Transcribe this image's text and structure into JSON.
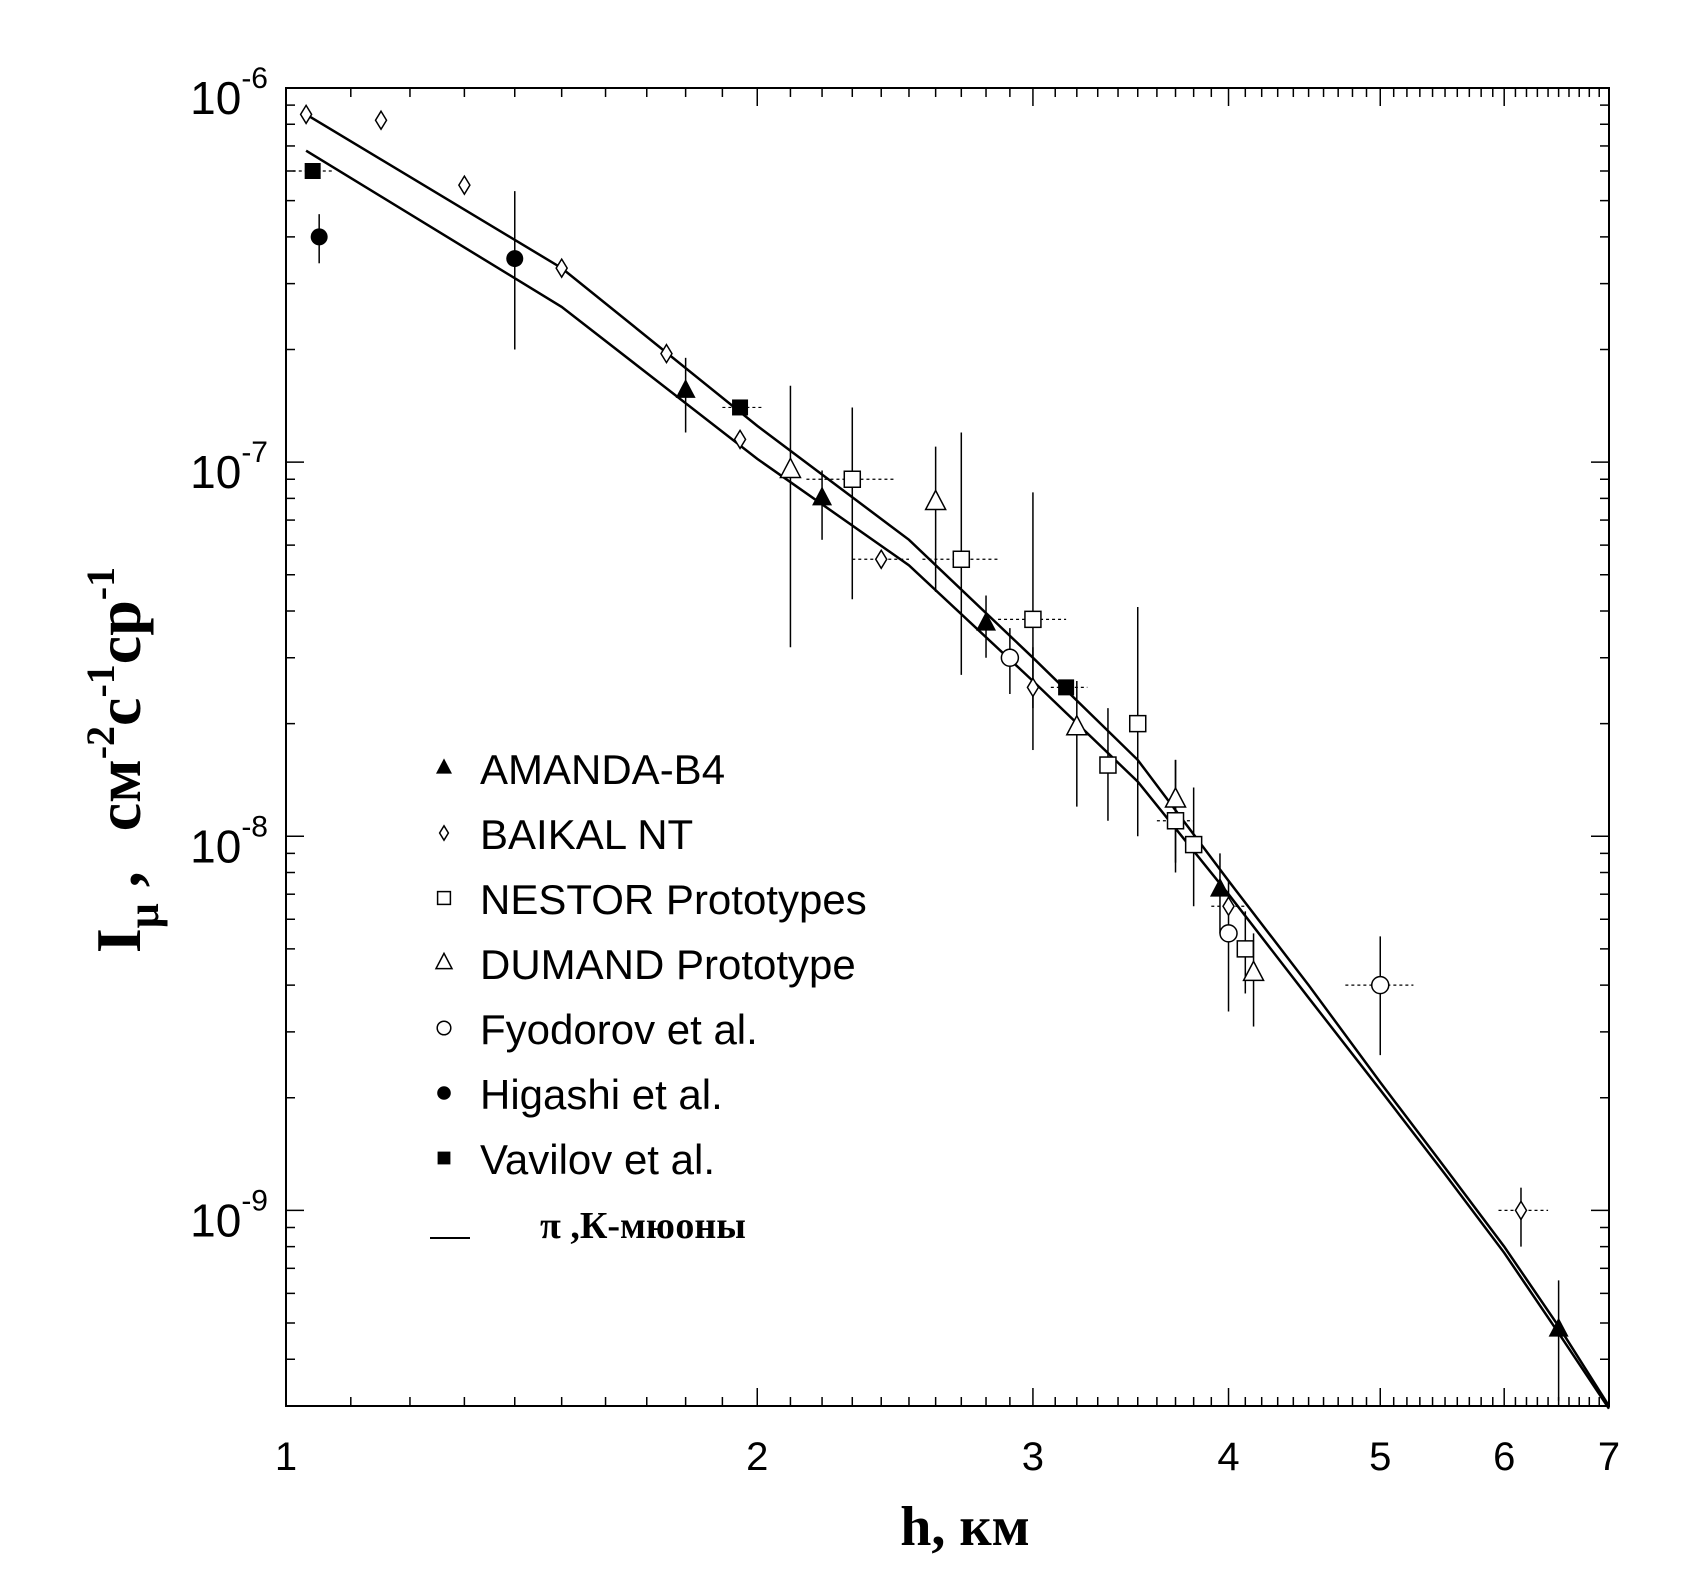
{
  "chart_data": {
    "type": "scatter",
    "xlabel": "h, км",
    "ylabel": "I_μ , см^-2 с^-1 ср^-1",
    "ylabel_parts": {
      "main": "I",
      "sub": "μ",
      "comma": " ,",
      "units": [
        "см",
        "-2",
        "с",
        "-1",
        "ср",
        "-1"
      ]
    },
    "x_scale": "log",
    "y_scale": "log",
    "xlim": [
      1,
      7
    ],
    "ylim": [
      3e-10,
      1e-06
    ],
    "x_ticks": [
      1,
      2,
      3,
      4,
      5,
      6,
      7
    ],
    "x_tick_labels": [
      "1",
      "2",
      "3",
      "4",
      "5",
      "6",
      "7"
    ],
    "y_ticks": [
      1e-09,
      1e-08,
      1e-07,
      1e-06
    ],
    "y_tick_labels": [
      {
        "base": "10",
        "exp": "-9"
      },
      {
        "base": "10",
        "exp": "-8"
      },
      {
        "base": "10",
        "exp": "-7"
      },
      {
        "base": "10",
        "exp": "-6"
      }
    ],
    "grid": false,
    "legend_position": "center-left",
    "series": [
      {
        "name": "AMANDA-B4",
        "marker": "filled-triangle",
        "points": [
          {
            "x": 1.8,
            "y": 1.55e-07,
            "ylo": 1.2e-07,
            "yhi": 1.9e-07
          },
          {
            "x": 2.2,
            "y": 8e-08,
            "ylo": 6.2e-08,
            "yhi": 9.5e-08
          },
          {
            "x": 2.8,
            "y": 3.7e-08,
            "ylo": 3e-08,
            "yhi": 4.4e-08
          },
          {
            "x": 3.95,
            "y": 7.2e-09,
            "ylo": 5.5e-09,
            "yhi": 9e-09
          },
          {
            "x": 6.5,
            "y": 4.8e-10,
            "ylo": 3.1e-10,
            "yhi": 6.5e-10
          }
        ]
      },
      {
        "name": "BAIKAL NT",
        "marker": "open-diamond",
        "points": [
          {
            "x": 1.03,
            "y": 8.5e-07
          },
          {
            "x": 1.15,
            "y": 8.2e-07
          },
          {
            "x": 1.3,
            "y": 5.5e-07
          },
          {
            "x": 1.5,
            "y": 3.3e-07
          },
          {
            "x": 1.75,
            "y": 1.95e-07
          },
          {
            "x": 1.95,
            "y": 1.15e-07
          },
          {
            "x": 2.4,
            "y": 5.5e-08,
            "xlo": 2.3,
            "xhi": 2.5
          },
          {
            "x": 3.0,
            "y": 2.5e-08,
            "ylo": 1.7e-08,
            "yhi": 3.2e-08
          },
          {
            "x": 4.0,
            "y": 6.5e-09,
            "xlo": 3.9,
            "xhi": 4.1
          },
          {
            "x": 6.15,
            "y": 1e-09,
            "xlo": 5.95,
            "xhi": 6.4,
            "ylo": 8e-10,
            "yhi": 1.15e-09
          }
        ]
      },
      {
        "name": "NESTOR Prototypes",
        "marker": "open-square",
        "points": [
          {
            "x": 2.3,
            "y": 9e-08,
            "xlo": 2.15,
            "xhi": 2.45,
            "ylo": 4.3e-08,
            "yhi": 1.4e-07
          },
          {
            "x": 2.7,
            "y": 5.5e-08,
            "xlo": 2.55,
            "xhi": 2.85,
            "ylo": 2.7e-08,
            "yhi": 1.2e-07
          },
          {
            "x": 3.0,
            "y": 3.8e-08,
            "xlo": 2.85,
            "xhi": 3.15,
            "ylo": 2.2e-08,
            "yhi": 8.3e-08
          },
          {
            "x": 3.35,
            "y": 1.55e-08,
            "ylo": 1.1e-08,
            "yhi": 2.2e-08
          },
          {
            "x": 3.5,
            "y": 2e-08,
            "ylo": 1e-08,
            "yhi": 4.1e-08
          },
          {
            "x": 3.7,
            "y": 1.1e-08,
            "xlo": 3.6,
            "xhi": 3.8,
            "ylo": 8e-09,
            "yhi": 1.6e-08
          },
          {
            "x": 3.8,
            "y": 9.5e-09,
            "ylo": 6.5e-09,
            "yhi": 1.35e-08
          },
          {
            "x": 4.1,
            "y": 5e-09,
            "ylo": 3.8e-09,
            "yhi": 6.3e-09
          }
        ]
      },
      {
        "name": "DUMAND Prototype",
        "marker": "open-triangle",
        "points": [
          {
            "x": 2.1,
            "y": 9.5e-08,
            "ylo": 3.2e-08,
            "yhi": 1.6e-07
          },
          {
            "x": 2.6,
            "y": 7.8e-08,
            "ylo": 4.5e-08,
            "yhi": 1.1e-07
          },
          {
            "x": 3.2,
            "y": 1.95e-08,
            "ylo": 1.2e-08,
            "yhi": 2.6e-08
          },
          {
            "x": 3.7,
            "y": 1.25e-08,
            "ylo": 8.5e-09,
            "yhi": 1.6e-08
          },
          {
            "x": 4.15,
            "y": 4.3e-09,
            "ylo": 3.1e-09,
            "yhi": 5.5e-09
          }
        ]
      },
      {
        "name": "Fyodorov et al.",
        "marker": "open-circle",
        "points": [
          {
            "x": 2.9,
            "y": 3e-08,
            "ylo": 2.4e-08,
            "yhi": 3.6e-08
          },
          {
            "x": 4.0,
            "y": 5.5e-09,
            "ylo": 3.4e-09,
            "yhi": 7.6e-09
          },
          {
            "x": 5.0,
            "y": 4e-09,
            "xlo": 4.75,
            "xhi": 5.25,
            "ylo": 2.6e-09,
            "yhi": 5.4e-09
          }
        ]
      },
      {
        "name": "Higashi et al.",
        "marker": "filled-circle",
        "points": [
          {
            "x": 1.05,
            "y": 4e-07,
            "ylo": 3.4e-07,
            "yhi": 4.6e-07
          },
          {
            "x": 1.4,
            "y": 3.5e-07,
            "ylo": 2e-07,
            "yhi": 5.3e-07
          }
        ]
      },
      {
        "name": "Vavilov et al.",
        "marker": "filled-square",
        "points": [
          {
            "x": 1.04,
            "y": 6e-07,
            "xlo": 1.01,
            "xhi": 1.07
          },
          {
            "x": 1.95,
            "y": 1.4e-07,
            "xlo": 1.9,
            "xhi": 2.02
          },
          {
            "x": 3.15,
            "y": 2.5e-08,
            "xlo": 3.08,
            "xhi": 3.25
          }
        ]
      }
    ],
    "curves": {
      "name": "π ,К-мюоны",
      "lines": [
        {
          "points": [
            [
              1.03,
              8.5e-07
            ],
            [
              1.5,
              3.3e-07
            ],
            [
              2.0,
              1.25e-07
            ],
            [
              2.5,
              6.2e-08
            ],
            [
              3.0,
              3e-08
            ],
            [
              3.5,
              1.6e-08
            ],
            [
              4.0,
              7.6e-09
            ],
            [
              4.5,
              4e-09
            ],
            [
              5.0,
              2.2e-09
            ],
            [
              5.5,
              1.3e-09
            ],
            [
              6.0,
              8e-10
            ],
            [
              6.5,
              4.9e-10
            ],
            [
              7.0,
              3e-10
            ]
          ]
        },
        {
          "points": [
            [
              1.03,
              6.8e-07
            ],
            [
              1.5,
              2.6e-07
            ],
            [
              2.0,
              1.02e-07
            ],
            [
              2.5,
              5.3e-08
            ],
            [
              3.0,
              2.6e-08
            ],
            [
              3.5,
              1.4e-08
            ],
            [
              4.0,
              7e-09
            ],
            [
              4.5,
              3.7e-09
            ],
            [
              5.0,
              2.1e-09
            ],
            [
              5.5,
              1.25e-09
            ],
            [
              6.0,
              7.7e-10
            ],
            [
              6.5,
              4.7e-10
            ],
            [
              7.0,
              2.95e-10
            ]
          ]
        }
      ]
    }
  }
}
